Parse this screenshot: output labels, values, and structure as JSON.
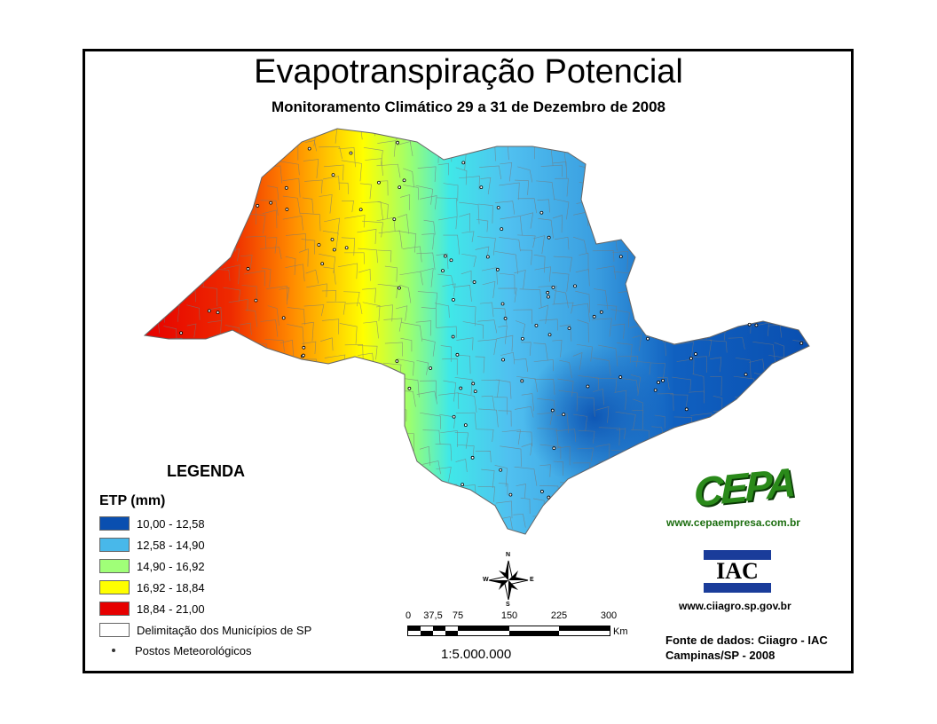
{
  "title": "Evapotranspiração Potencial",
  "subtitle": "Monitoramento Climático 29 a 31 de Dezembro de 2008",
  "legend": {
    "title": "LEGENDA",
    "subtitle": "ETP (mm)",
    "classes": [
      {
        "label": "10,00 - 12,58",
        "color": "#0a4fb0"
      },
      {
        "label": "12,58 - 14,90",
        "color": "#48b8ea"
      },
      {
        "label": "14,90 - 16,92",
        "color": "#a0ff78"
      },
      {
        "label": "16,92 - 18,84",
        "color": "#ffff00"
      },
      {
        "label": "18,84 - 21,00",
        "color": "#e60000"
      }
    ],
    "municipios": "Delimitação dos Municípios de SP",
    "postos": "Postos Meteorológicos"
  },
  "compass": {
    "n": "N",
    "s": "S",
    "e": "E",
    "w": "W"
  },
  "scale": {
    "ticks": [
      "0",
      "37,5",
      "75",
      "150",
      "225",
      "300"
    ],
    "unit": "Km",
    "ratio": "1:5.000.000"
  },
  "logos": {
    "cepa": "CEPA",
    "cepa_url": "www.cepaempresa.com.br",
    "iac": "IAC",
    "iac_url": "www.ciiagro.sp.gov.br"
  },
  "source": {
    "line1": "Fonte de dados: Ciiagro - IAC",
    "line2": "Campinas/SP - 2008"
  }
}
